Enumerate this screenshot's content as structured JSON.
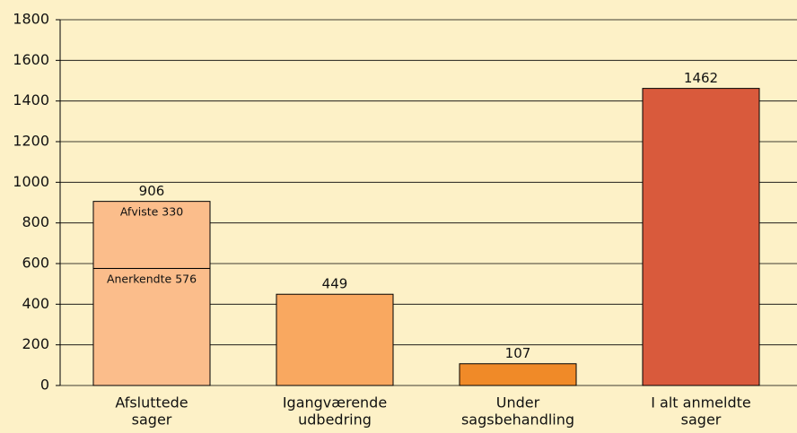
{
  "chart_data": {
    "type": "bar",
    "categories": [
      [
        "Afsluttede",
        "sager"
      ],
      [
        "Igangværende",
        "udbedring"
      ],
      [
        "Under",
        "sagsbehandling"
      ],
      [
        "I alt anmeldte",
        "sager"
      ]
    ],
    "values": [
      906,
      449,
      107,
      1462
    ],
    "colors": [
      "#fbbd8b",
      "#f9a860",
      "#f08a28",
      "#d95a3c"
    ],
    "stack": [
      {
        "name": "Anerkendte",
        "value": 576
      },
      {
        "name": "Afviste",
        "value": 330
      }
    ],
    "ylim": [
      0,
      1800
    ],
    "yticks": [
      0,
      200,
      400,
      600,
      800,
      1000,
      1200,
      1400,
      1600,
      1800
    ],
    "grid": true
  }
}
